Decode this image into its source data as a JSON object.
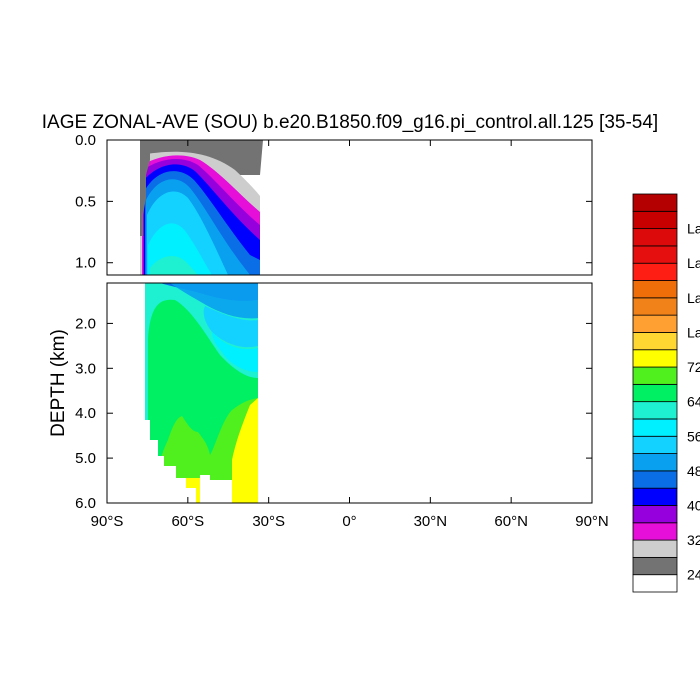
{
  "chart_data": {
    "type": "contour",
    "title": "IAGE ZONAL-AVE (SOU) b.e20.B1850.f09_g16.pi_control.all.125 [35-54]",
    "ylabel": "DEPTH (km)",
    "xlabel": "",
    "x_range": [
      -90,
      90
    ],
    "x_ticks": [
      {
        "value": -90,
        "label": "90°S"
      },
      {
        "value": -60,
        "label": "60°S"
      },
      {
        "value": -30,
        "label": "30°S"
      },
      {
        "value": 0,
        "label": "0°"
      },
      {
        "value": 30,
        "label": "30°N"
      },
      {
        "value": 60,
        "label": "60°N"
      },
      {
        "value": 90,
        "label": "90°N"
      }
    ],
    "upper_panel": {
      "depth_range_km": [
        0,
        1.1
      ],
      "y_ticks": [
        {
          "value": 0.0,
          "label": "0.0"
        },
        {
          "value": 0.5,
          "label": "0.5"
        },
        {
          "value": 1.0,
          "label": "1.0"
        }
      ]
    },
    "lower_panel": {
      "depth_range_km": [
        1.1,
        6.0
      ],
      "y_ticks": [
        {
          "value": 2.0,
          "label": "2.0"
        },
        {
          "value": 3.0,
          "label": "3.0"
        },
        {
          "value": 4.0,
          "label": "4.0"
        },
        {
          "value": 5.0,
          "label": "5.0"
        },
        {
          "value": 6.0,
          "label": "6.0"
        }
      ]
    },
    "data_extent": {
      "lat_min": -77,
      "lat_max": -35,
      "max_depth_km": 5.4
    },
    "colorbar": {
      "colors": [
        "#ffffff",
        "#737373",
        "#cdcdcd",
        "#e60fd9",
        "#9600dc",
        "#0000ff",
        "#0a6fe6",
        "#0aa0f0",
        "#14d2ff",
        "#00f0ff",
        "#1ef0d2",
        "#00f064",
        "#50f01e",
        "#ffff00",
        "#ffd732",
        "#ffa032",
        "#f08219",
        "#f06e0a",
        "#ff1e14",
        "#e60f0f",
        "#dc0a0a",
        "#c80000",
        "#b40000"
      ],
      "labels": [
        "24",
        "32",
        "40",
        "48",
        "56",
        "64",
        "72",
        "La",
        "La",
        "La",
        "La"
      ]
    }
  }
}
